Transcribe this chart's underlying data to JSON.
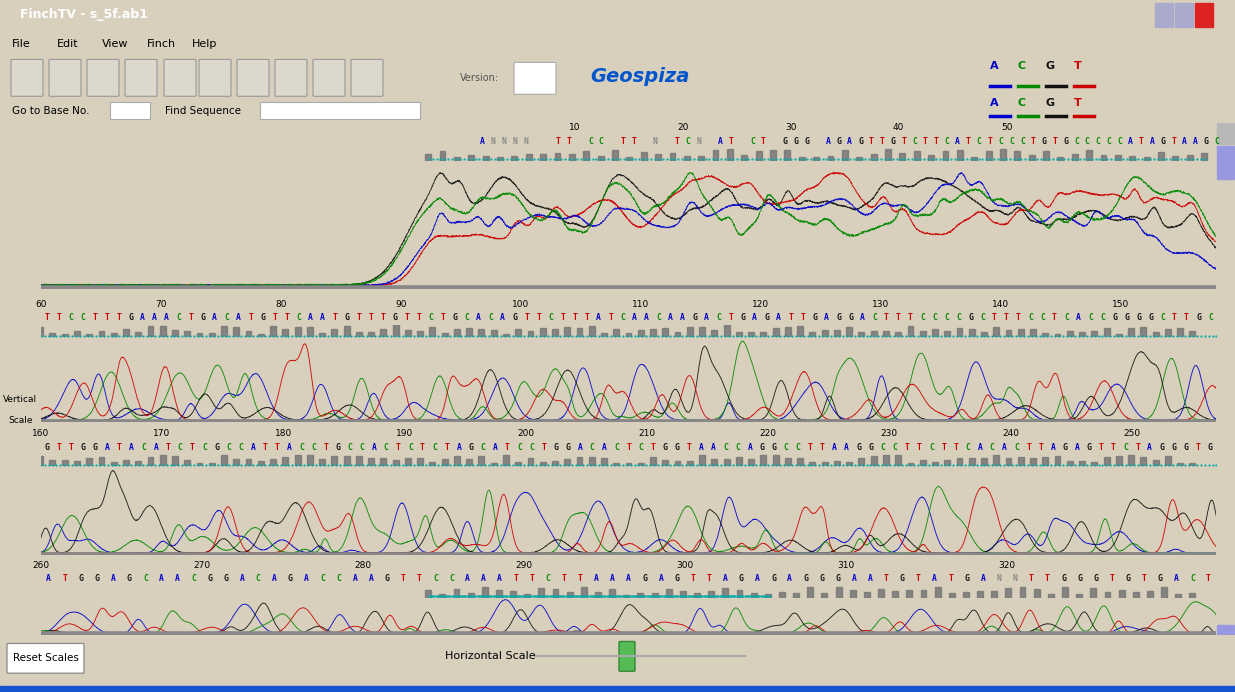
{
  "title": "FinchTV - s_5f.ab1",
  "bg_color": "#d8d0bc",
  "inner_bg": "#f0ece0",
  "white": "#ffffff",
  "title_bar_color": "#1555d0",
  "title_text_color": "white",
  "menu_items": [
    "File",
    "Edit",
    "View",
    "Finch",
    "Help"
  ],
  "legend": {
    "A": "#0000cc",
    "C": "#008800",
    "G": "#111111",
    "T": "#cc0000"
  },
  "geospiza_color": "#0055cc",
  "bottom_bar_color": "#1555d0",
  "trace_colors": {
    "A": "#0000cc",
    "C": "#008800",
    "G": "#111111",
    "T": "#cc0000"
  },
  "seq1": "ANNNN  TT CC TT N TCN AT CT GGG AGAGTTGTCTTCATCTCCCTGTGCCCCCATAGTAAGC",
  "seq2": "TTCCTTTGAAACTGACATGTTCAATGTTTGTTCTGCACAGTTCTTTATCAACAAGACTGAGATTGAGGACTTTCCCCGCTTTCCTCACCGGGGCTTGC",
  "seq3": "GTTGGATACATCTCGCCATTACCTGCCACTCTCTAGCATCCTGGACACTCTGGTAACCAGGCCTTAAGGCCTTCTTCACACTTAGAGTTCTAGGGTG",
  "seq4": "ATGGAGCAACGGACAGACCAAGTTCCAAATTCTTAAAGAGTTAGAGAGGGAATGTATGANNTTGGGTGTGACT",
  "num1": [
    10,
    20,
    30,
    40,
    50
  ],
  "num2": [
    60,
    70,
    80,
    90,
    100,
    110,
    120,
    130,
    140,
    150
  ],
  "num3": [
    160,
    170,
    180,
    190,
    200,
    210,
    220,
    230,
    240,
    250
  ],
  "num4": [
    260,
    270,
    280,
    290,
    300,
    310,
    320
  ]
}
